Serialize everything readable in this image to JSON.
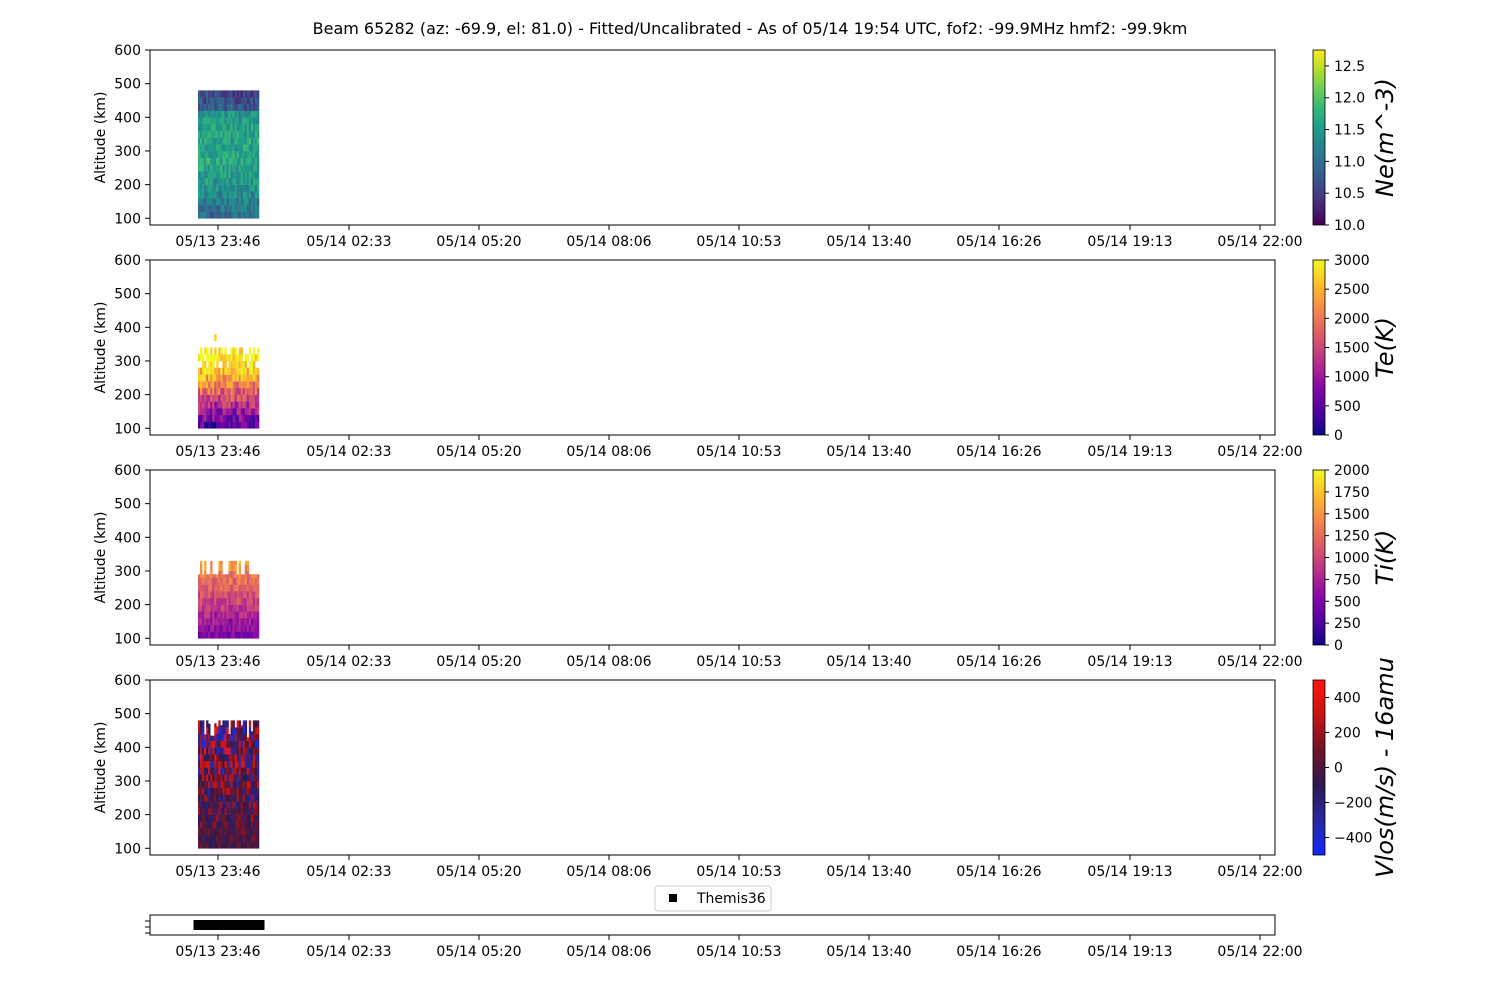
{
  "title": "Beam 65282 (az: -69.9, el: 81.0) - Fitted/Uncalibrated - As of 05/14 19:54 UTC, fof2: -99.9MHz  hmf2: -99.9km",
  "chart_data": [
    {
      "type": "heatmap",
      "ylabel": "Altitude (km)",
      "ylim": [
        80,
        600
      ],
      "yticks": [
        100,
        200,
        300,
        400,
        500,
        600
      ],
      "xticks": [
        "05/13 23:46",
        "05/14 02:33",
        "05/14 05:20",
        "05/14 08:06",
        "05/14 10:53",
        "05/14 13:40",
        "05/14 16:26",
        "05/14 19:13",
        "05/14 22:00"
      ],
      "data_time_range": [
        "05/13 23:20",
        "05/14 00:10"
      ],
      "data_alt_range": [
        100,
        480
      ],
      "colorbar": {
        "label": "Ne(m^-3)",
        "colormap": "viridis",
        "range": [
          10.0,
          12.75
        ],
        "ticks": [
          "10.0",
          "10.5",
          "11.0",
          "11.5",
          "12.0",
          "12.5"
        ]
      }
    },
    {
      "type": "heatmap",
      "ylabel": "Altitude (km)",
      "ylim": [
        80,
        600
      ],
      "yticks": [
        100,
        200,
        300,
        400,
        500,
        600
      ],
      "xticks": [
        "05/13 23:46",
        "05/14 02:33",
        "05/14 05:20",
        "05/14 08:06",
        "05/14 10:53",
        "05/14 13:40",
        "05/14 16:26",
        "05/14 19:13",
        "05/14 22:00"
      ],
      "data_time_range": [
        "05/13 23:20",
        "05/14 00:10"
      ],
      "data_alt_range": [
        100,
        340
      ],
      "colorbar": {
        "label": "Te(K)",
        "colormap": "plasma",
        "range": [
          0,
          3000
        ],
        "ticks": [
          "0",
          "500",
          "1000",
          "1500",
          "2000",
          "2500",
          "3000"
        ]
      }
    },
    {
      "type": "heatmap",
      "ylabel": "Altitude (km)",
      "ylim": [
        80,
        600
      ],
      "yticks": [
        100,
        200,
        300,
        400,
        500,
        600
      ],
      "xticks": [
        "05/13 23:46",
        "05/14 02:33",
        "05/14 05:20",
        "05/14 08:06",
        "05/14 10:53",
        "05/14 13:40",
        "05/14 16:26",
        "05/14 19:13",
        "05/14 22:00"
      ],
      "data_time_range": [
        "05/13 23:20",
        "05/14 00:10"
      ],
      "data_alt_range": [
        100,
        290
      ],
      "colorbar": {
        "label": "Ti(K)",
        "colormap": "plasma",
        "range": [
          0,
          2000
        ],
        "ticks": [
          "0",
          "250",
          "500",
          "750",
          "1000",
          "1250",
          "1500",
          "1750",
          "2000"
        ]
      }
    },
    {
      "type": "heatmap",
      "ylabel": "Altitude (km)",
      "ylim": [
        80,
        600
      ],
      "yticks": [
        100,
        200,
        300,
        400,
        500,
        600
      ],
      "xticks": [
        "05/13 23:46",
        "05/14 02:33",
        "05/14 05:20",
        "05/14 08:06",
        "05/14 10:53",
        "05/14 13:40",
        "05/14 16:26",
        "05/14 19:13",
        "05/14 22:00"
      ],
      "data_time_range": [
        "05/13 23:20",
        "05/14 00:10"
      ],
      "data_alt_range": [
        100,
        480
      ],
      "colorbar": {
        "label": "Vlos(m/s) - 16amu",
        "colormap": "bwr-dark",
        "range": [
          -500,
          500
        ],
        "ticks": [
          "−400",
          "−200",
          "0",
          "200",
          "400"
        ]
      }
    },
    {
      "type": "scatter",
      "legend": [
        "Themis36"
      ],
      "legend_placement": "top-center",
      "xticks": [
        "05/13 23:46",
        "05/14 02:33",
        "05/14 05:20",
        "05/14 08:06",
        "05/14 10:53",
        "05/14 13:40",
        "05/14 16:26",
        "05/14 19:13",
        "05/14 22:00"
      ],
      "data_time_range": [
        "05/13 23:20",
        "05/14 00:10"
      ],
      "marker": "square",
      "color": "#000000"
    }
  ]
}
